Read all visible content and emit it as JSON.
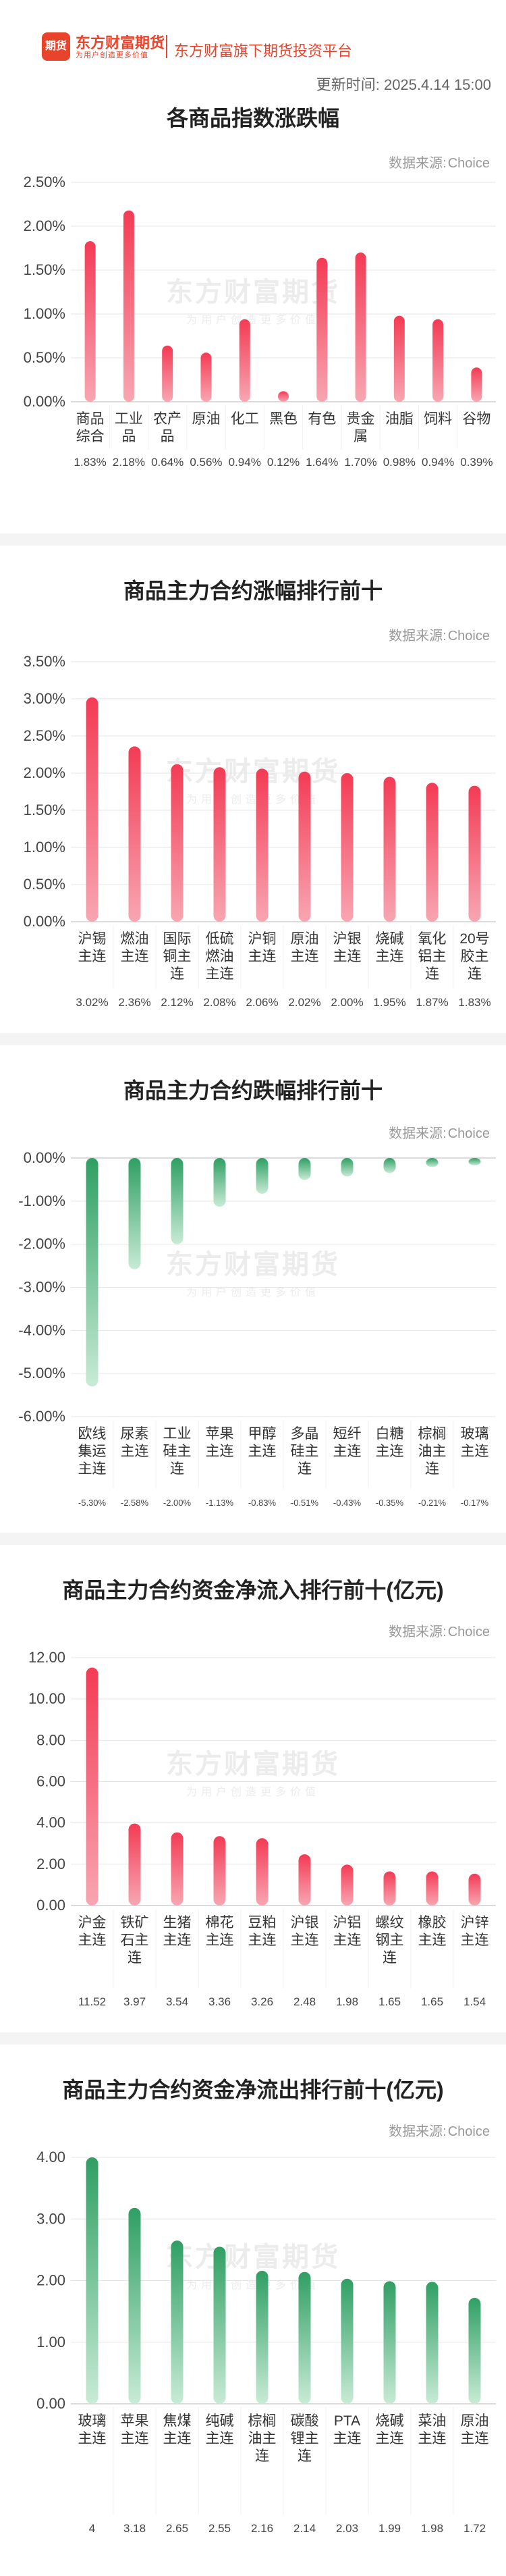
{
  "header": {
    "logo_mark": "期货",
    "logo_name": "东方财富期货",
    "logo_slogan": "为用户创造更多价值",
    "platform_name": "东方财富旗下期货投资平台",
    "update_label": "更新时间:",
    "update_time": "2025.4.14 15:00"
  },
  "source_label": "数据来源:",
  "source_value": "Choice",
  "watermark": {
    "main": "东方财富期货",
    "sub": "为用户创造更多价值"
  },
  "colors": {
    "red_top": "#f8a6b2",
    "red_bottom": "#f33b54",
    "green_top": "#2f9f63",
    "green_bottom": "#c8ebd6"
  },
  "chart_data": [
    {
      "id": "c1",
      "type": "bar",
      "title": "各商品指数涨跌幅",
      "categories": [
        "商品\n综合",
        "工业\n品",
        "农产\n品",
        "原油",
        "化工",
        "黑色",
        "有色",
        "贵金\n属",
        "油脂",
        "饲料",
        "谷物"
      ],
      "values": [
        1.83,
        2.18,
        0.64,
        0.56,
        0.94,
        0.12,
        1.64,
        1.7,
        0.98,
        0.94,
        0.39
      ],
      "value_labels": [
        "1.83%",
        "2.18%",
        "0.64%",
        "0.56%",
        "0.94%",
        "0.12%",
        "1.64%",
        "1.70%",
        "0.98%",
        "0.94%",
        "0.39%"
      ],
      "yticks": [
        "2.50%",
        "2.00%",
        "1.50%",
        "1.00%",
        "0.50%",
        "0.00%"
      ],
      "ylim": [
        0,
        2.5
      ],
      "color": "red",
      "grid": true
    },
    {
      "id": "c2",
      "type": "bar",
      "title": "商品主力合约涨幅排行前十",
      "categories": [
        "沪锡\n主连",
        "燃油\n主连",
        "国际\n铜主\n连",
        "低硫\n燃油\n主连",
        "沪铜\n主连",
        "原油\n主连",
        "沪银\n主连",
        "烧碱\n主连",
        "氧化\n铝主\n连",
        "20号\n胶主\n连"
      ],
      "values": [
        3.02,
        2.36,
        2.12,
        2.08,
        2.06,
        2.02,
        2.0,
        1.95,
        1.87,
        1.83
      ],
      "value_labels": [
        "3.02%",
        "2.36%",
        "2.12%",
        "2.08%",
        "2.06%",
        "2.02%",
        "2.00%",
        "1.95%",
        "1.87%",
        "1.83%"
      ],
      "yticks": [
        "3.50%",
        "3.00%",
        "2.50%",
        "2.00%",
        "1.50%",
        "1.00%",
        "0.50%",
        "0.00%"
      ],
      "ylim": [
        0,
        3.5
      ],
      "color": "red",
      "grid": true
    },
    {
      "id": "c3",
      "type": "bar",
      "title": "商品主力合约跌幅排行前十",
      "categories": [
        "欧线\n集运\n主连",
        "尿素\n主连",
        "工业\n硅主\n连",
        "苹果\n主连",
        "甲醇\n主连",
        "多晶\n硅主\n连",
        "短纤\n主连",
        "白糖\n主连",
        "棕榈\n油主\n连",
        "玻璃\n主连"
      ],
      "values": [
        -5.3,
        -2.58,
        -2.0,
        -1.13,
        -0.83,
        -0.51,
        -0.43,
        -0.35,
        -0.21,
        -0.17
      ],
      "value_labels": [
        "-5.30%",
        "-2.58%",
        "-2.00%",
        "-1.13%",
        "-0.83%",
        "-0.51%",
        "-0.43%",
        "-0.35%",
        "-0.21%",
        "-0.17%"
      ],
      "yticks": [
        "0.00%",
        "-1.00%",
        "-2.00%",
        "-3.00%",
        "-4.00%",
        "-5.00%",
        "-6.00%"
      ],
      "ylim": [
        -6,
        0
      ],
      "color": "green",
      "grid": true
    },
    {
      "id": "c4",
      "type": "bar",
      "title": "商品主力合约资金净流入排行前十(亿元)",
      "categories": [
        "沪金\n主连",
        "铁矿\n石主\n连",
        "生猪\n主连",
        "棉花\n主连",
        "豆粕\n主连",
        "沪银\n主连",
        "沪铝\n主连",
        "螺纹\n钢主\n连",
        "橡胶\n主连",
        "沪锌\n主连"
      ],
      "values": [
        11.52,
        3.97,
        3.54,
        3.36,
        3.26,
        2.48,
        1.98,
        1.65,
        1.65,
        1.54
      ],
      "value_labels": [
        "11.52",
        "3.97",
        "3.54",
        "3.36",
        "3.26",
        "2.48",
        "1.98",
        "1.65",
        "1.65",
        "1.54"
      ],
      "yticks": [
        "12.00",
        "10.00",
        "8.00",
        "6.00",
        "4.00",
        "2.00",
        "0.00"
      ],
      "ylim": [
        0,
        12
      ],
      "color": "red",
      "grid": true
    },
    {
      "id": "c5",
      "type": "bar",
      "title": "商品主力合约资金净流出排行前十(亿元)",
      "categories": [
        "玻璃\n主连",
        "苹果\n主连",
        "焦煤\n主连",
        "纯碱\n主连",
        "棕榈\n油主\n连",
        "碳酸\n锂主\n连",
        "PTA\n主连",
        "烧碱\n主连",
        "菜油\n主连",
        "原油\n主连"
      ],
      "values": [
        4.0,
        3.18,
        2.65,
        2.55,
        2.16,
        2.14,
        2.03,
        1.99,
        1.98,
        1.72
      ],
      "value_labels": [
        "4",
        "3.18",
        "2.65",
        "2.55",
        "2.16",
        "2.14",
        "2.03",
        "1.99",
        "1.98",
        "1.72"
      ],
      "yticks": [
        "4.00",
        "3.00",
        "2.00",
        "1.00",
        "0.00"
      ],
      "ylim": [
        0,
        4
      ],
      "color": "green-up",
      "grid": true
    }
  ]
}
